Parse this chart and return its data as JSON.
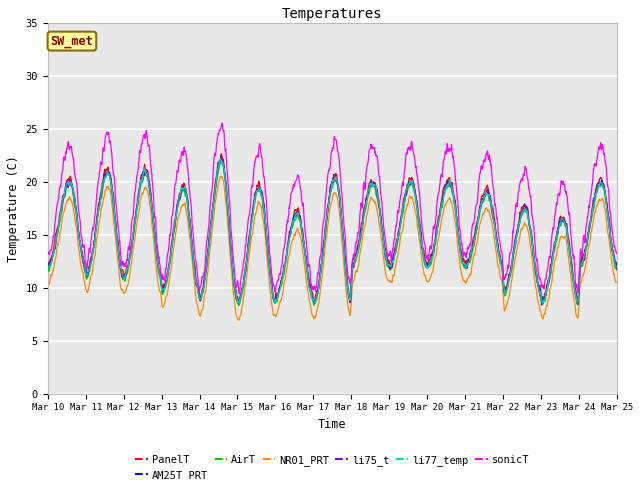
{
  "title": "Temperatures",
  "xlabel": "Time",
  "ylabel": "Temperature (C)",
  "ylim": [
    0,
    35
  ],
  "yticks": [
    0,
    5,
    10,
    15,
    20,
    25,
    30,
    35
  ],
  "annotation_text": "SW_met",
  "annotation_color": "#8B0000",
  "annotation_bg": "#FFFF99",
  "annotation_border": "#8B6914",
  "series_colors": {
    "PanelT": "#FF0000",
    "AM25T_PRT": "#0000FF",
    "AirT": "#00CC00",
    "NR01_PRT": "#FF8800",
    "li75_t": "#8800BB",
    "li77_temp": "#00CCCC",
    "sonicT": "#FF00FF"
  },
  "background_color": "#E8E8E8",
  "fig_bg": "#FFFFFF",
  "grid_color": "#FFFFFF",
  "font_family": "monospace",
  "linewidth": 0.9
}
